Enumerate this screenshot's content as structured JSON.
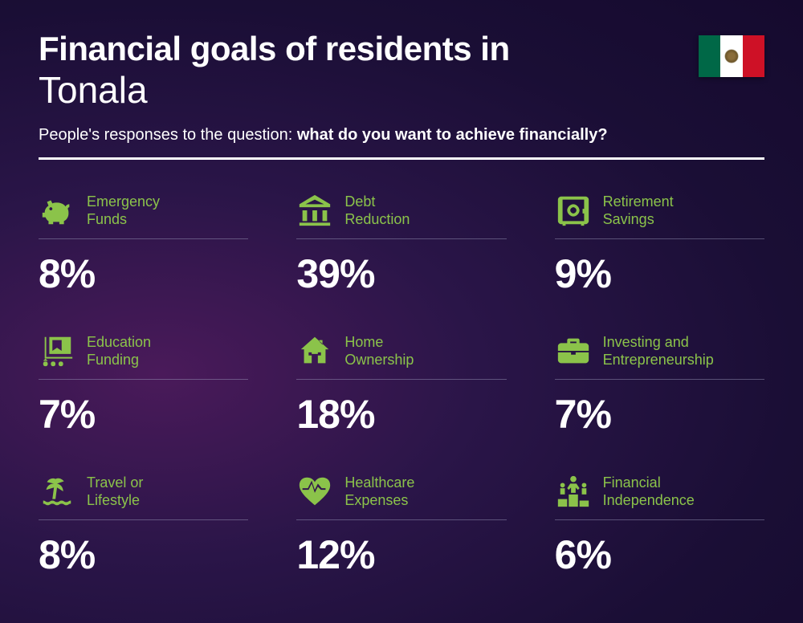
{
  "header": {
    "title_line1": "Financial goals of residents in",
    "title_line2": "Tonala",
    "subtitle_prefix": "People's responses to the question: ",
    "subtitle_bold": "what do you want to achieve financially?"
  },
  "flag": {
    "left_color": "#006847",
    "center_color": "#ffffff",
    "right_color": "#ce1126"
  },
  "colors": {
    "accent": "#8bc34a",
    "text": "#ffffff",
    "background_start": "#4a1a5a",
    "background_end": "#150a2e",
    "thin_divider": "rgba(160,160,190,0.45)"
  },
  "typography": {
    "title_bold_fontsize": 42,
    "title_light_fontsize": 46,
    "subtitle_fontsize": 20,
    "label_fontsize": 18,
    "percent_fontsize": 50
  },
  "layout": {
    "columns": 3,
    "rows": 3,
    "column_gap": 60,
    "row_gap": 42
  },
  "items": [
    {
      "icon": "piggy-bank-icon",
      "label": "Emergency\nFunds",
      "percent": "8%"
    },
    {
      "icon": "bank-icon",
      "label": "Debt\nReduction",
      "percent": "39%"
    },
    {
      "icon": "safe-icon",
      "label": "Retirement\nSavings",
      "percent": "9%"
    },
    {
      "icon": "education-icon",
      "label": "Education\nFunding",
      "percent": "7%"
    },
    {
      "icon": "house-icon",
      "label": "Home\nOwnership",
      "percent": "18%"
    },
    {
      "icon": "briefcase-icon",
      "label": "Investing and\nEntrepreneurship",
      "percent": "7%"
    },
    {
      "icon": "palm-icon",
      "label": "Travel or\nLifestyle",
      "percent": "8%"
    },
    {
      "icon": "heart-pulse-icon",
      "label": "Healthcare\nExpenses",
      "percent": "12%"
    },
    {
      "icon": "podium-icon",
      "label": "Financial\nIndependence",
      "percent": "6%"
    }
  ]
}
